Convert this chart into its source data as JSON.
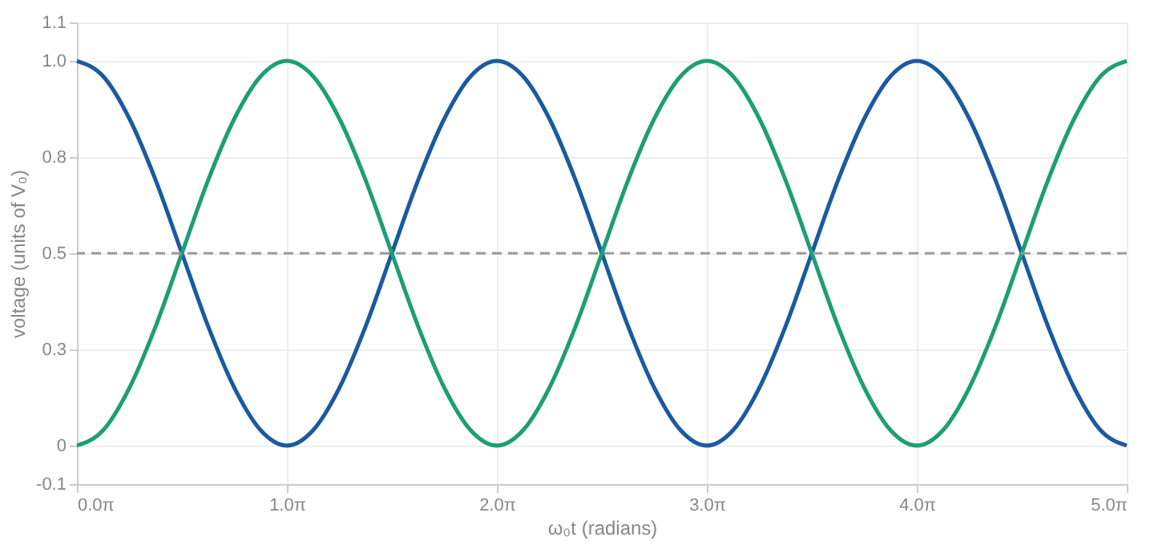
{
  "chart_data": {
    "type": "line",
    "xlabel": "ω₀t (radians)",
    "ylabel": "voltage (units of V₀)",
    "x": [
      0,
      0.3927,
      0.7854,
      1.1781,
      1.5708,
      1.9635,
      2.3562,
      2.7489,
      3.1416,
      3.5343,
      3.927,
      4.3197,
      4.7124,
      5.1051,
      5.4978,
      5.8905,
      6.2832,
      6.6759,
      7.0686,
      7.4613,
      7.854,
      8.2467,
      8.6394,
      9.0321,
      9.4248,
      9.8175,
      10.2102,
      10.6029,
      10.9956,
      11.3883,
      11.781,
      12.1737,
      12.5664,
      12.9591,
      13.3518,
      13.7445,
      14.1372,
      14.5299,
      14.9226,
      15.3153,
      15.708
    ],
    "xlim": [
      0,
      15.708
    ],
    "xticks": [
      {
        "value": 0,
        "label": "0.0π"
      },
      {
        "value": 3.1416,
        "label": "1.0π"
      },
      {
        "value": 6.2832,
        "label": "2.0π"
      },
      {
        "value": 9.4248,
        "label": "3.0π"
      },
      {
        "value": 12.5664,
        "label": "4.0π"
      },
      {
        "value": 15.708,
        "label": "5.0π"
      }
    ],
    "series": [
      {
        "color": "#1a5aa0",
        "values": [
          1,
          0.96,
          0.85,
          0.69,
          0.5,
          0.31,
          0.15,
          0.04,
          0,
          0.04,
          0.15,
          0.31,
          0.5,
          0.69,
          0.85,
          0.96,
          1,
          0.96,
          0.85,
          0.69,
          0.5,
          0.31,
          0.15,
          0.04,
          0,
          0.04,
          0.15,
          0.31,
          0.5,
          0.69,
          0.85,
          0.96,
          1,
          0.96,
          0.85,
          0.69,
          0.5,
          0.31,
          0.15,
          0.04,
          0
        ]
      },
      {
        "color": "#1e9e74",
        "values": [
          0,
          0.04,
          0.15,
          0.31,
          0.5,
          0.69,
          0.85,
          0.96,
          1,
          0.96,
          0.85,
          0.69,
          0.5,
          0.31,
          0.15,
          0.04,
          0,
          0.04,
          0.15,
          0.31,
          0.5,
          0.69,
          0.85,
          0.96,
          1,
          0.96,
          0.85,
          0.69,
          0.5,
          0.31,
          0.15,
          0.04,
          0,
          0.04,
          0.15,
          0.31,
          0.5,
          0.69,
          0.85,
          0.96,
          1
        ]
      }
    ],
    "ylim": [
      -0.1,
      1.1
    ],
    "yticks": [
      -0.1,
      0,
      {
        "value": 0.25,
        "label": "0.3"
      },
      0.5,
      {
        "value": 0.75,
        "label": "0.8"
      },
      {
        "value": 1,
        "label": "1.0"
      },
      1.1
    ],
    "ref_lines": [
      {
        "axis": "y",
        "value": 0.5,
        "color": "#999999",
        "line_style": "dashed"
      }
    ],
    "grid": true,
    "line_style": "solid",
    "marker": "none",
    "legend": false
  }
}
